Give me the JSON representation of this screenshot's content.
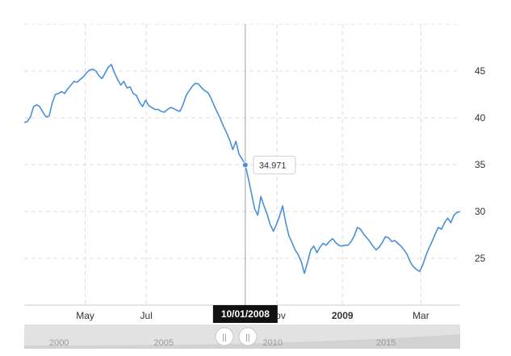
{
  "chart_data": {
    "type": "line",
    "ylim": [
      20,
      50
    ],
    "y_ticks": [
      25,
      30,
      35,
      40,
      45
    ],
    "x_tick_labels": [
      {
        "label": "May",
        "bold": false,
        "t": 0.14
      },
      {
        "label": "Jul",
        "bold": false,
        "t": 0.28
      },
      {
        "label": "Nov",
        "bold": false,
        "t": 0.58
      },
      {
        "label": "2009",
        "bold": true,
        "t": 0.73
      },
      {
        "label": "Mar",
        "bold": false,
        "t": 0.91
      }
    ],
    "grid": true,
    "series": [
      {
        "color": "#4a90d9",
        "values": [
          39.5,
          39.6,
          40.1,
          41.2,
          41.4,
          41.2,
          40.6,
          40.1,
          40.2,
          41.6,
          42.5,
          42.6,
          42.8,
          42.6,
          43.1,
          43.5,
          43.9,
          43.8,
          44.1,
          44.4,
          44.8,
          45.1,
          45.2,
          45.0,
          44.5,
          44.2,
          44.8,
          45.4,
          45.7,
          44.8,
          44.1,
          43.5,
          43.9,
          43.2,
          43.3,
          42.6,
          42.4,
          41.7,
          41.2,
          41.9,
          41.3,
          41.1,
          40.9,
          40.9,
          40.7,
          40.6,
          40.9,
          41.1,
          41.0,
          40.8,
          40.7,
          41.4,
          42.4,
          42.9,
          43.4,
          43.7,
          43.6,
          43.2,
          42.9,
          42.7,
          42.1,
          41.3,
          40.6,
          39.9,
          39.1,
          38.4,
          37.6,
          36.6,
          37.5,
          36.1,
          35.6,
          34.971,
          33.5,
          31.9,
          30.3,
          29.6,
          31.6,
          30.6,
          29.7,
          28.6,
          27.9,
          28.6,
          29.5,
          30.6,
          28.8,
          27.4,
          26.7,
          25.9,
          25.4,
          24.6,
          23.4,
          24.6,
          25.9,
          26.3,
          25.6,
          26.2,
          26.6,
          26.4,
          26.8,
          27.1,
          26.7,
          26.4,
          26.3,
          26.4,
          26.4,
          26.8,
          27.4,
          28.3,
          28.1,
          27.6,
          27.2,
          26.8,
          26.3,
          25.9,
          26.2,
          26.7,
          27.3,
          27.2,
          26.8,
          26.9,
          26.6,
          26.3,
          25.9,
          25.4,
          24.6,
          24.1,
          23.8,
          23.6,
          24.3,
          25.3,
          26.1,
          26.8,
          27.6,
          28.3,
          28.1,
          28.8,
          29.3,
          28.8,
          29.6,
          29.9,
          30.0
        ]
      }
    ],
    "crosshair": {
      "index": 71,
      "value_label": "34.971",
      "date_label": "10/01/2008"
    },
    "navigator": {
      "year_labels": [
        {
          "label": "2000",
          "t": 0.08
        },
        {
          "label": "2005",
          "t": 0.32
        },
        {
          "label": "2010",
          "t": 0.57
        },
        {
          "label": "2015",
          "t": 0.83
        }
      ],
      "handle_glyph": "||"
    }
  }
}
